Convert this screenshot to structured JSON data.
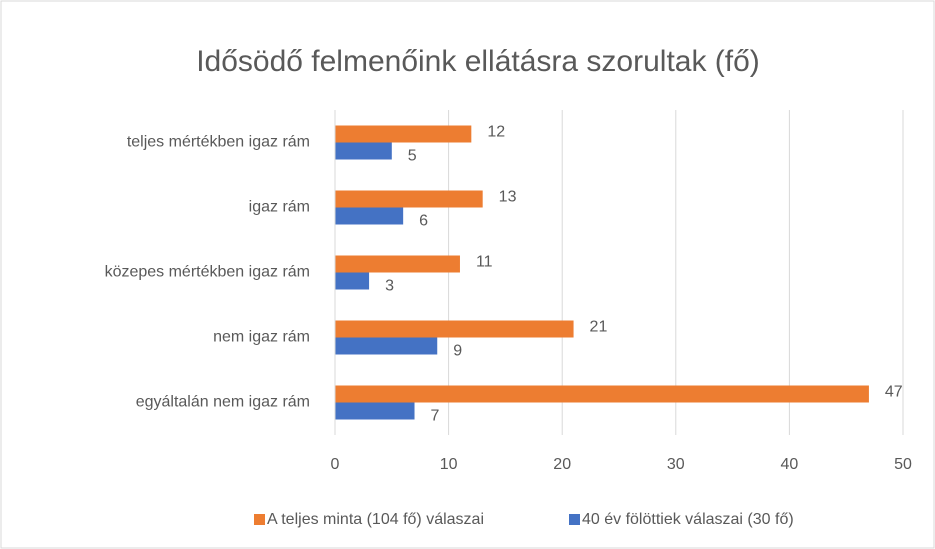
{
  "chart_data": {
    "type": "bar",
    "orientation": "horizontal",
    "title": "Idősödő felmenőink ellátásra szorultak (fő)",
    "categories": [
      "teljes mértékben igaz rám",
      "igaz rám",
      "közepes mértékben igaz rám",
      "nem igaz rám",
      "egyáltalán nem igaz rám"
    ],
    "series": [
      {
        "name": "A teljes minta (104 fő) válaszai",
        "color": "#ed7d31",
        "values": [
          12,
          13,
          11,
          21,
          47
        ]
      },
      {
        "name": "40 év fölöttiek válaszai (30 fő)",
        "color": "#4472c4",
        "values": [
          5,
          6,
          3,
          9,
          7
        ]
      }
    ],
    "xlim": [
      0,
      50
    ],
    "xticks": [
      0,
      10,
      20,
      30,
      40,
      50
    ],
    "grid": true,
    "legend": "bottom"
  }
}
